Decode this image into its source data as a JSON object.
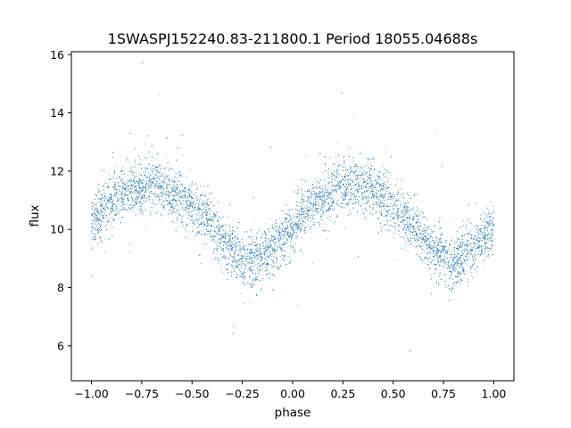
{
  "chart_data": {
    "type": "scatter",
    "title": "1SWASPJ152240.83-211800.1 Period 18055.04688s",
    "xlabel": "phase",
    "ylabel": "flux",
    "xlim": [
      -1.1,
      1.1
    ],
    "ylim": [
      4.8,
      16.1
    ],
    "xticks": [
      -1.0,
      -0.75,
      -0.5,
      -0.25,
      0.0,
      0.25,
      0.5,
      0.75,
      1.0
    ],
    "xtick_labels": [
      "−1.00",
      "−0.75",
      "−0.50",
      "−0.25",
      "0.00",
      "0.25",
      "0.50",
      "0.75",
      "1.00"
    ],
    "yticks": [
      6,
      8,
      10,
      12,
      14,
      16
    ],
    "ytick_labels": [
      "6",
      "8",
      "10",
      "12",
      "14",
      "16"
    ],
    "grid": false,
    "point_color": "#1f77b4",
    "series": [
      {
        "x": [
          -1.0,
          -0.95,
          -0.9,
          -0.85,
          -0.8,
          -0.75,
          -0.7,
          -0.65,
          -0.6,
          -0.55,
          -0.5,
          -0.45,
          -0.4,
          -0.35,
          -0.3,
          -0.25,
          -0.2,
          -0.15,
          -0.1,
          -0.05,
          0.0,
          0.05,
          0.1,
          0.15,
          0.2,
          0.25,
          0.3,
          0.35,
          0.4,
          0.45,
          0.5,
          0.55,
          0.6,
          0.65,
          0.7,
          0.75,
          0.8,
          0.85,
          0.9,
          0.95,
          1.0
        ],
        "y": [
          10.2,
          10.6,
          10.9,
          11.2,
          11.4,
          11.5,
          11.6,
          11.5,
          11.3,
          11.1,
          10.8,
          10.5,
          10.1,
          9.7,
          9.3,
          9.0,
          8.9,
          9.0,
          9.3,
          9.7,
          10.1,
          10.5,
          10.8,
          11.1,
          11.3,
          11.5,
          11.6,
          11.5,
          11.3,
          11.1,
          10.8,
          10.5,
          10.1,
          9.7,
          9.3,
          9.0,
          8.9,
          9.0,
          9.3,
          9.7,
          10.1
        ]
      }
    ]
  }
}
